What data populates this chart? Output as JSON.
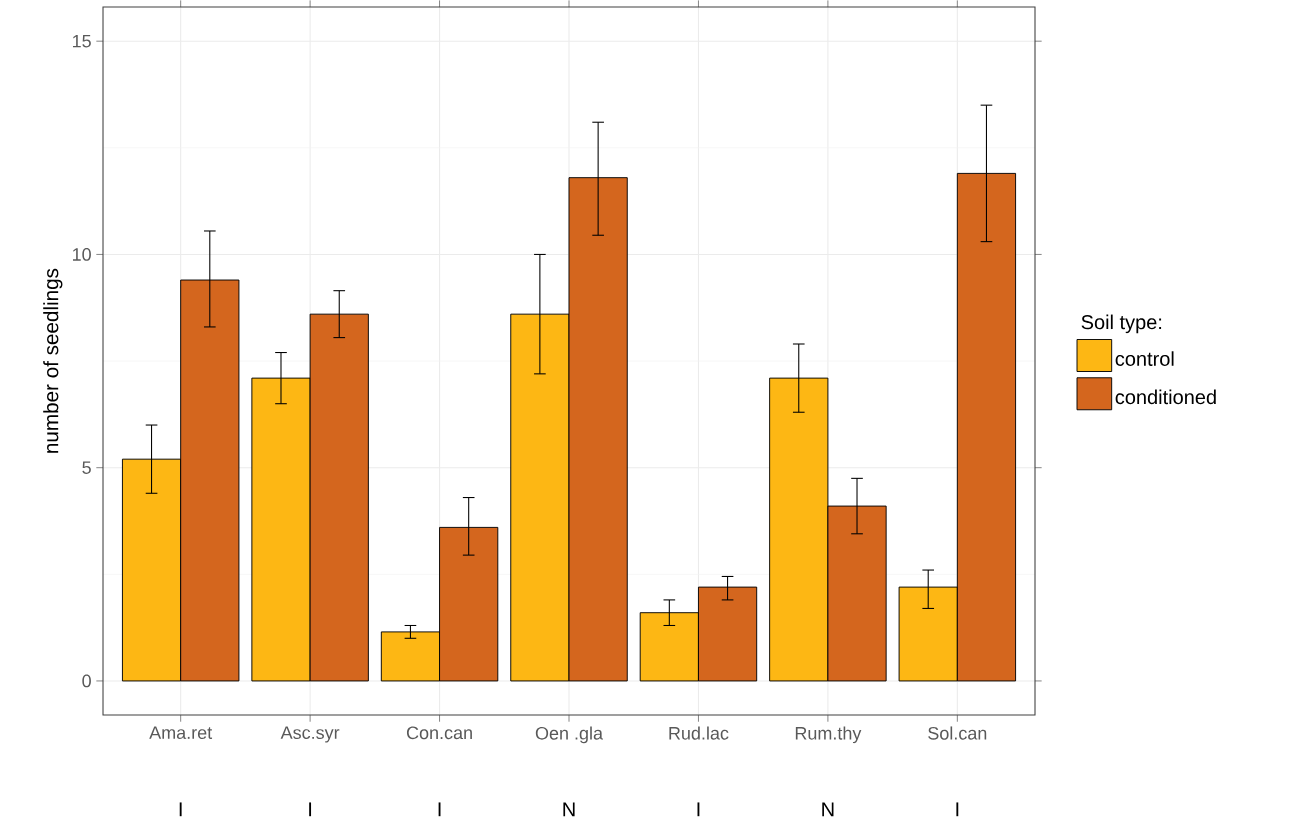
{
  "chart_data": {
    "type": "bar",
    "ylabel": "number of seedlings",
    "legend_title": "Soil type:",
    "categories": [
      "Ama.ret",
      "Asc.syr",
      "Con.can",
      "Oen .gla",
      "Rud.lac",
      "Rum.thy",
      "Sol.can"
    ],
    "series": [
      {
        "name": "control",
        "color": "#fdb714",
        "values": [
          5.2,
          7.1,
          1.15,
          8.6,
          1.6,
          7.1,
          2.2
        ],
        "errors": [
          [
            4.4,
            6.0
          ],
          [
            6.5,
            7.7
          ],
          [
            1.0,
            1.3
          ],
          [
            7.2,
            10.0
          ],
          [
            1.3,
            1.9
          ],
          [
            6.3,
            7.9
          ],
          [
            1.7,
            2.6
          ]
        ]
      },
      {
        "name": "conditioned",
        "color": "#d4661e",
        "values": [
          9.4,
          8.6,
          3.6,
          11.8,
          2.2,
          4.1,
          11.9
        ],
        "errors": [
          [
            8.3,
            10.55
          ],
          [
            8.05,
            9.15
          ],
          [
            2.95,
            4.3
          ],
          [
            10.45,
            13.1
          ],
          [
            1.9,
            2.45
          ],
          [
            3.45,
            4.75
          ],
          [
            10.3,
            13.5
          ]
        ]
      }
    ],
    "ylim": [
      -0.8,
      15.8
    ],
    "yticks": [
      0,
      5,
      10,
      15
    ],
    "grid": true,
    "legend": "right",
    "annotations": [
      "I",
      "I",
      "I",
      "N",
      "I",
      "N",
      "I"
    ]
  }
}
